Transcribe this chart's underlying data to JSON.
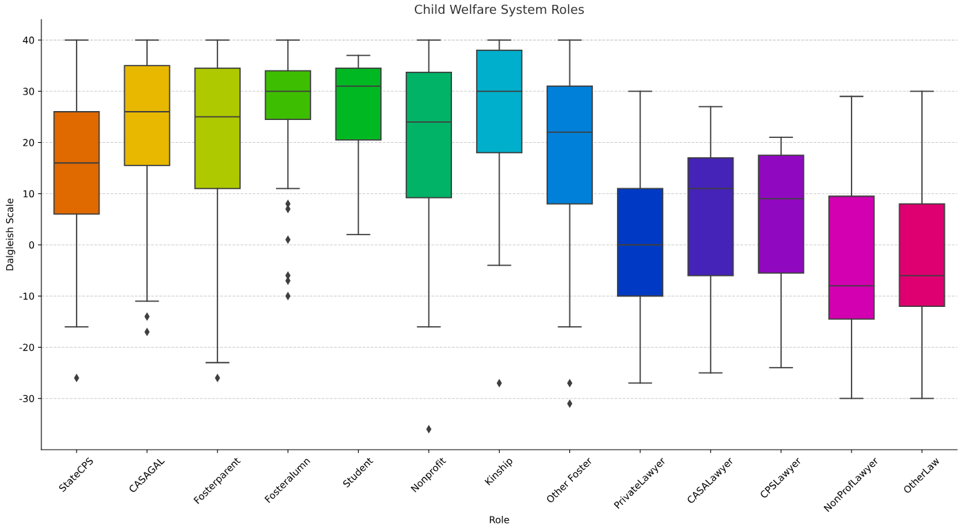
{
  "chart_data": {
    "type": "box",
    "title": "Child Welfare System Roles",
    "xlabel": "Role",
    "ylabel": "Dalgleish Scale",
    "categories": [
      "StateCPS",
      "CASAGAL",
      "Fosterparent",
      "Fosteralumn",
      "Student",
      "Nonprofit",
      "Kinship",
      "Other Foster",
      "PrivateLawyer",
      "CASALawyer",
      "CPSLawyer",
      "NonProfLawyer",
      "OtherLaw"
    ],
    "colors": [
      "#e06900",
      "#e8b800",
      "#aec900",
      "#3ebe00",
      "#00b822",
      "#00b366",
      "#00afcb",
      "#0080d8",
      "#003ac4",
      "#4523b8",
      "#9009c0",
      "#d200b0",
      "#de0070"
    ],
    "boxes": [
      {
        "low": -16,
        "q1": 6,
        "median": 16,
        "q3": 26,
        "high": 40,
        "outliers": [
          -26
        ]
      },
      {
        "low": -11,
        "q1": 15.5,
        "median": 26,
        "q3": 35,
        "high": 40,
        "outliers": [
          -14,
          -17
        ]
      },
      {
        "low": -23,
        "q1": 11,
        "median": 25,
        "q3": 34.5,
        "high": 40,
        "outliers": [
          -26
        ]
      },
      {
        "low": 11,
        "q1": 24.5,
        "median": 30,
        "q3": 34,
        "high": 40,
        "outliers": [
          8,
          7,
          1,
          -6,
          -7,
          -10
        ]
      },
      {
        "low": 2,
        "q1": 20.5,
        "median": 31,
        "q3": 34.5,
        "high": 37
      },
      {
        "low": -16,
        "q1": 9.2,
        "median": 24,
        "q3": 33.7,
        "high": 40,
        "outliers": [
          -36
        ]
      },
      {
        "low": -4,
        "q1": 18,
        "median": 30,
        "q3": 38,
        "high": 40,
        "outliers": [
          -27
        ]
      },
      {
        "low": -16,
        "q1": 8,
        "median": 22,
        "q3": 31,
        "high": 40,
        "outliers": [
          -27,
          -31
        ]
      },
      {
        "low": -27,
        "q1": -10,
        "median": 0,
        "q3": 11,
        "high": 30
      },
      {
        "low": -25,
        "q1": -6,
        "median": 11,
        "q3": 17,
        "high": 27
      },
      {
        "low": -24,
        "q1": -5.5,
        "median": 9,
        "q3": 17.5,
        "high": 21
      },
      {
        "low": -30,
        "q1": -14.5,
        "median": -8,
        "q3": 9.5,
        "high": 29
      },
      {
        "low": -30,
        "q1": -12,
        "median": -6,
        "q3": 8,
        "high": 30
      }
    ],
    "ylim": [
      -40,
      44
    ],
    "yticks": [
      -30,
      -20,
      -10,
      0,
      10,
      20,
      30,
      40
    ],
    "grid": "y",
    "marker": "diamond"
  }
}
